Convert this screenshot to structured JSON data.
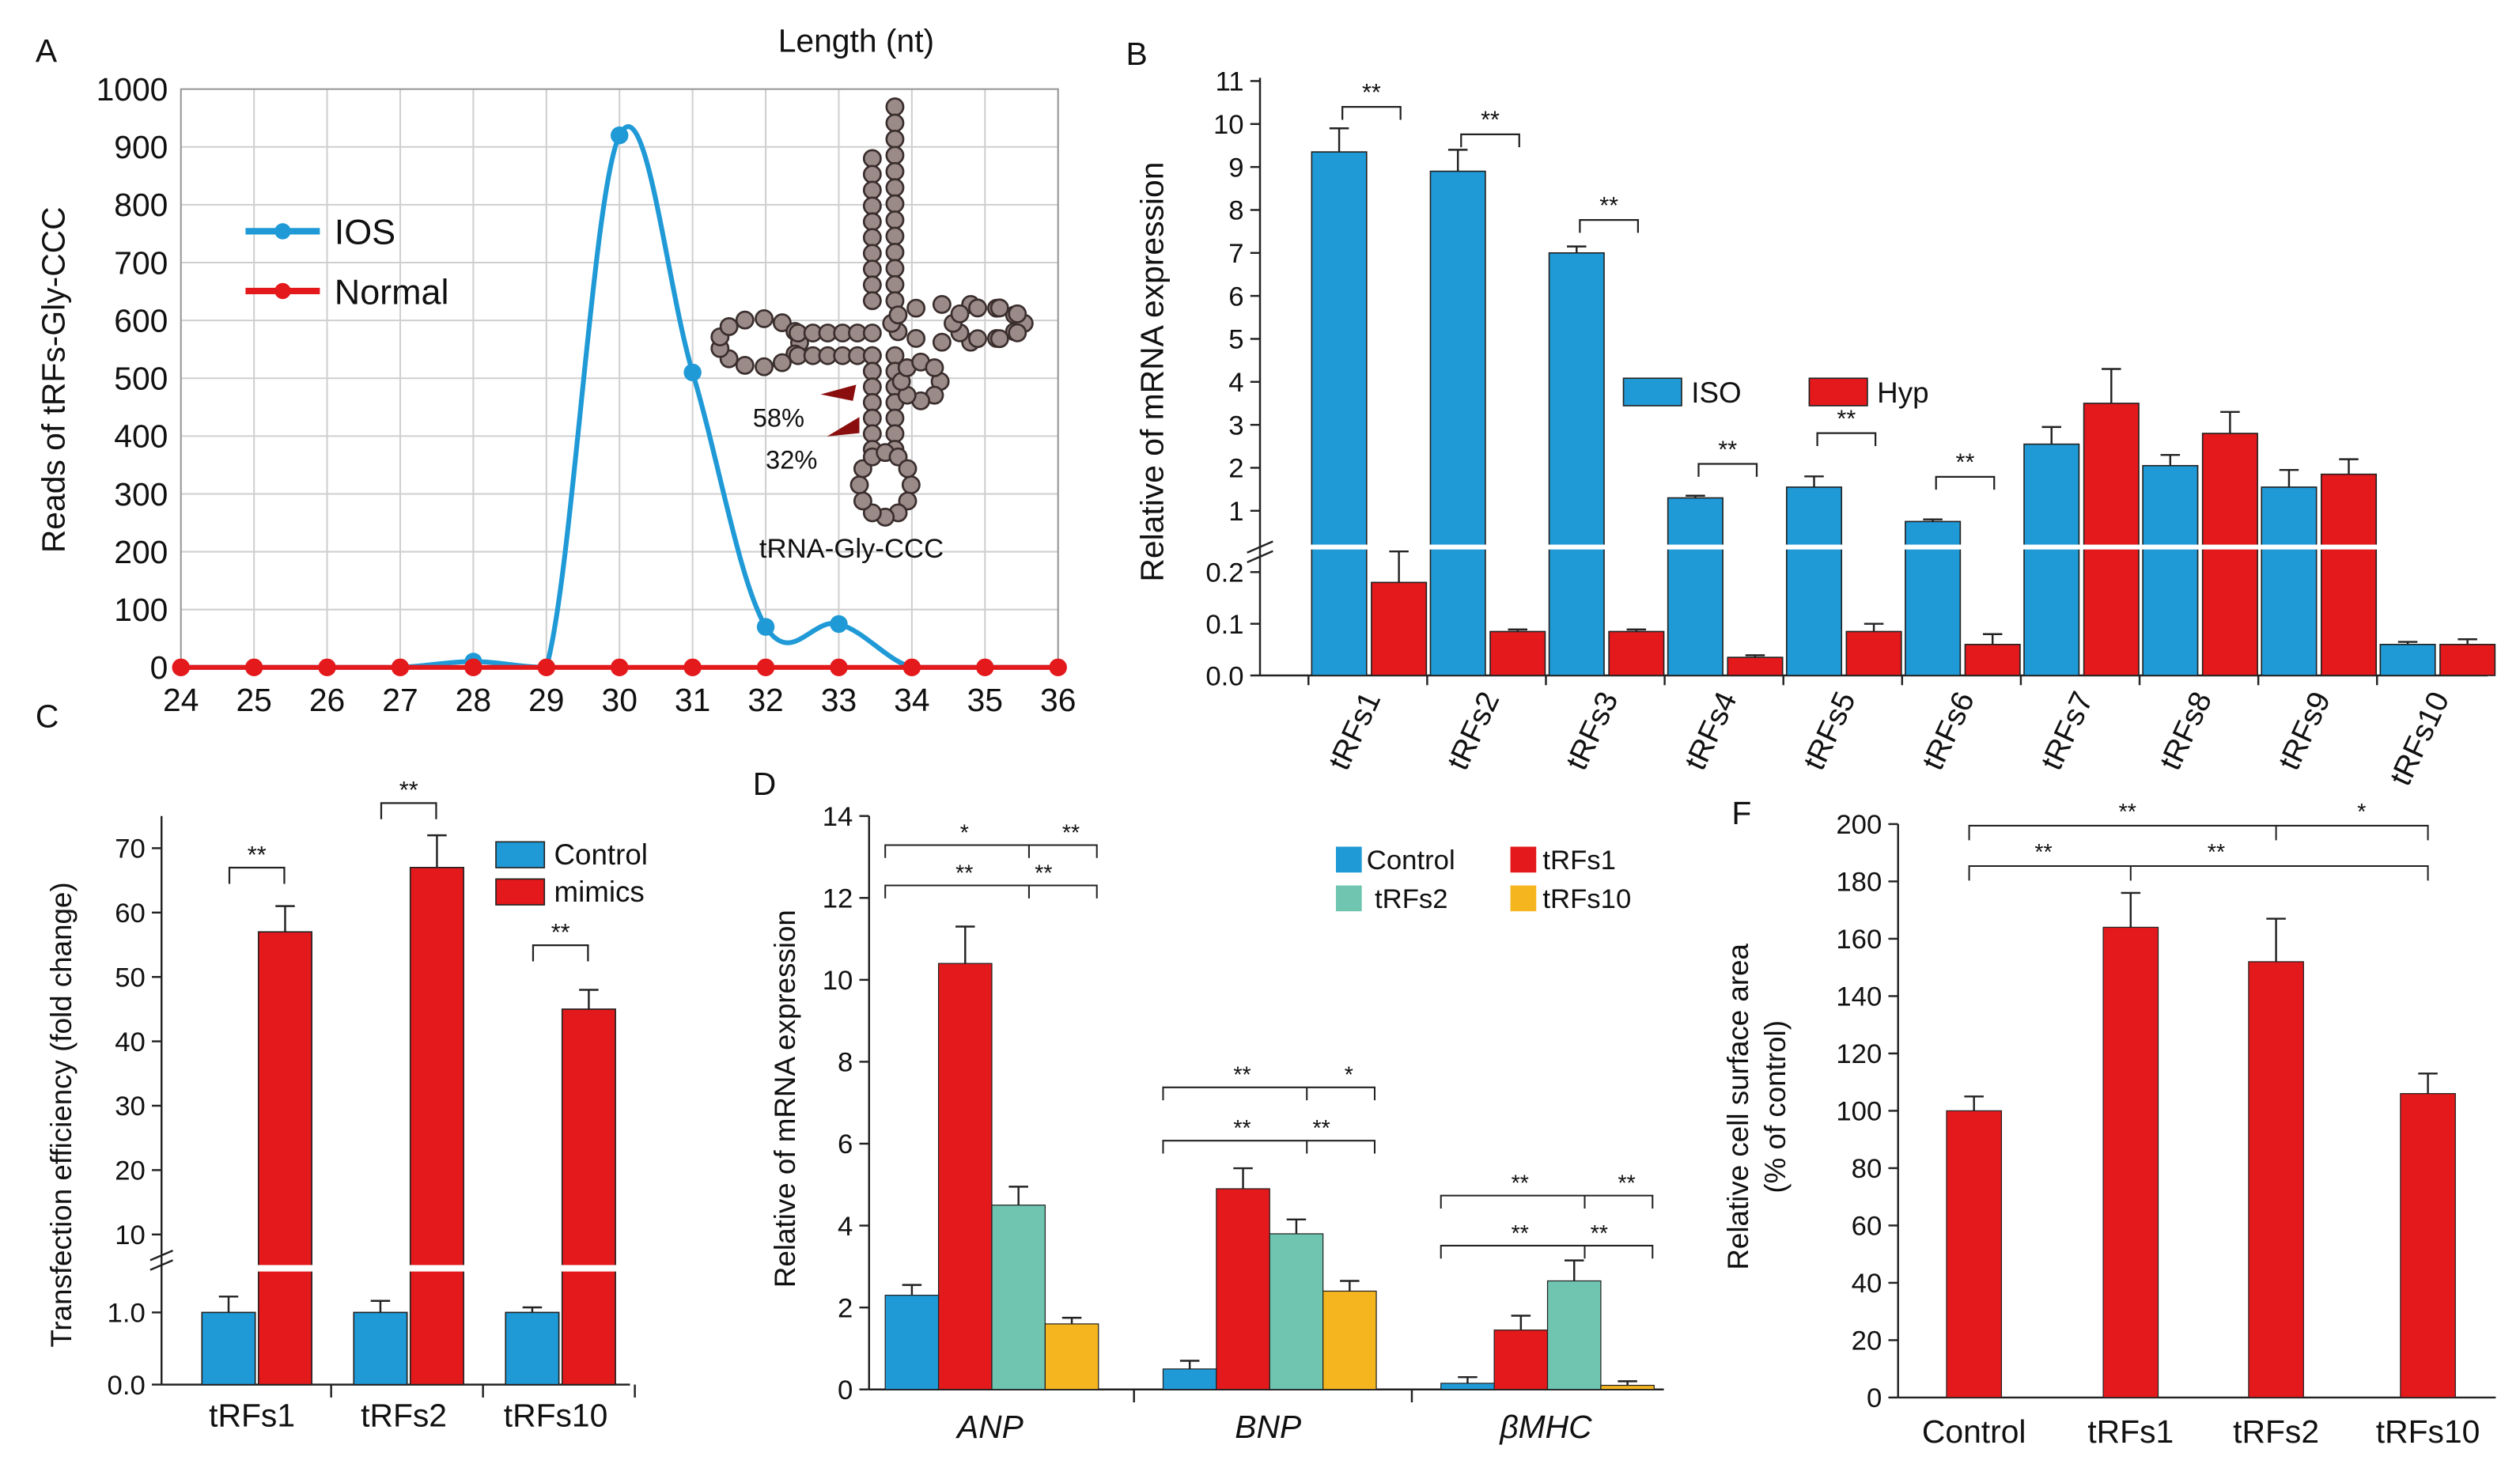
{
  "colors": {
    "blue": "#1f9ad6",
    "red": "#e3191c",
    "teal": "#6fc5b0",
    "yellow": "#f5b51f",
    "bead": "#9a8a88",
    "grid": "#cfcfcf"
  },
  "chart_data": [
    {
      "panel": "A",
      "type": "line",
      "title": "Length (nt)",
      "xlabel": "",
      "ylabel": "Reads of tRFs-Gly-CCC",
      "x": [
        24,
        25,
        26,
        27,
        28,
        29,
        30,
        31,
        32,
        33,
        34,
        35,
        36
      ],
      "xlim": [
        24,
        36
      ],
      "ylim": [
        0,
        1000
      ],
      "yticks": [
        0,
        100,
        200,
        300,
        400,
        500,
        600,
        700,
        800,
        900,
        1000
      ],
      "grid": true,
      "legend_position": "upper-left",
      "series": [
        {
          "name": "IOS",
          "color": "#1f9ad6",
          "values": [
            0,
            0,
            0,
            0,
            10,
            0,
            920,
            510,
            70,
            75,
            0,
            0,
            0
          ]
        },
        {
          "name": "Normal",
          "color": "#e3191c",
          "values": [
            0,
            0,
            0,
            0,
            0,
            0,
            0,
            0,
            0,
            0,
            0,
            0,
            0
          ]
        }
      ],
      "inset": {
        "label": "tRNA-Gly-CCC",
        "annotations": [
          "58%",
          "32%"
        ]
      }
    },
    {
      "panel": "B",
      "type": "bar",
      "ylabel": "Relative of mRNA expression",
      "categories": [
        "tRFs1",
        "tRFs2",
        "tRFs3",
        "tRFs4",
        "tRFs5",
        "tRFs6",
        "tRFs7",
        "tRFs8",
        "tRFs9",
        "tRFs10"
      ],
      "broken_axis": {
        "lower_range": [
          0,
          0.25
        ],
        "upper_range": [
          0.25,
          11
        ]
      },
      "upper_ticks": [
        1,
        2,
        3,
        4,
        5,
        6,
        7,
        8,
        9,
        10,
        11
      ],
      "lower_ticks": [
        "0.0",
        "0.1",
        "0.2"
      ],
      "legend_position": "middle-right",
      "series": [
        {
          "name": "ISO",
          "color": "#1f9ad6",
          "values": [
            9.35,
            8.9,
            7.0,
            1.3,
            1.55,
            0.75,
            2.55,
            2.05,
            1.55,
            0.06
          ],
          "errors": [
            0.55,
            0.5,
            0.15,
            0.05,
            0.25,
            0.05,
            0.4,
            0.25,
            0.4,
            0.005
          ]
        },
        {
          "name": "Hyp",
          "color": "#e3191c",
          "values": [
            0.18,
            0.085,
            0.085,
            0.035,
            0.085,
            0.06,
            3.5,
            2.8,
            1.85,
            0.06
          ],
          "errors": [
            0.06,
            0.004,
            0.004,
            0.004,
            0.015,
            0.02,
            0.8,
            0.5,
            0.35,
            0.01
          ]
        }
      ],
      "significance": [
        "**",
        "**",
        "**",
        "**",
        "**",
        "**"
      ]
    },
    {
      "panel": "C",
      "type": "bar",
      "ylabel": "Transfection efficiency (fold change)",
      "categories": [
        "tRFs1",
        "tRFs2",
        "tRFs10"
      ],
      "upper_ticks": [
        10,
        20,
        30,
        40,
        50,
        60,
        70
      ],
      "lower_ticks": [
        "0.0",
        "1.0"
      ],
      "legend_position": "top-right",
      "series": [
        {
          "name": "Control",
          "color": "#1f9ad6",
          "values": [
            1.0,
            1.0,
            1.0
          ],
          "errors": [
            0.22,
            0.16,
            0.07
          ]
        },
        {
          "name": "mimics",
          "color": "#e3191c",
          "values": [
            57,
            67,
            45
          ],
          "errors": [
            4,
            5,
            3
          ]
        }
      ],
      "significance": [
        "**",
        "**",
        "**"
      ]
    },
    {
      "panel": "D",
      "type": "bar",
      "ylabel": "Relative of mRNA expression",
      "categories": [
        "ANP",
        "BNP",
        "βMHC"
      ],
      "ylim": [
        0,
        14
      ],
      "yticks": [
        0,
        2,
        4,
        6,
        8,
        10,
        12,
        14
      ],
      "legend_position": "top-right",
      "series": [
        {
          "name": "Control",
          "color": "#1f9ad6",
          "values": [
            2.3,
            0.5,
            0.15
          ],
          "errors": [
            0.25,
            0.2,
            0.15
          ]
        },
        {
          "name": "tRFs1",
          "color": "#e3191c",
          "values": [
            10.4,
            4.9,
            1.45
          ],
          "errors": [
            0.9,
            0.5,
            0.35
          ]
        },
        {
          "name": "tRFs2",
          "color": "#6fc5b0",
          "values": [
            4.5,
            3.8,
            2.65
          ],
          "errors": [
            0.45,
            0.35,
            0.5
          ]
        },
        {
          "name": "tRFs10",
          "color": "#f5b51f",
          "values": [
            1.6,
            2.4,
            0.1
          ],
          "errors": [
            0.15,
            0.25,
            0.1
          ]
        }
      ],
      "significance": {
        "ANP": [
          "*",
          "**",
          "**",
          "**"
        ],
        "BNP": [
          "**",
          "*",
          "**",
          "**"
        ],
        "βMHC": [
          "**",
          "**",
          "**",
          "**"
        ]
      }
    },
    {
      "panel": "F",
      "type": "bar",
      "ylabel_line1": "Relative cell surface area",
      "ylabel_line2": "(% of control)",
      "categories": [
        "Control",
        "tRFs1",
        "tRFs2",
        "tRFs10"
      ],
      "ylim": [
        0,
        200
      ],
      "yticks": [
        0,
        20,
        40,
        60,
        80,
        100,
        120,
        140,
        160,
        180,
        200
      ],
      "series": [
        {
          "name": "cell surface area",
          "color": "#e3191c",
          "values": [
            100,
            164,
            152,
            106
          ],
          "errors": [
            5,
            12,
            15,
            7
          ]
        }
      ],
      "significance": [
        "**",
        "*",
        "**",
        "**"
      ]
    }
  ]
}
